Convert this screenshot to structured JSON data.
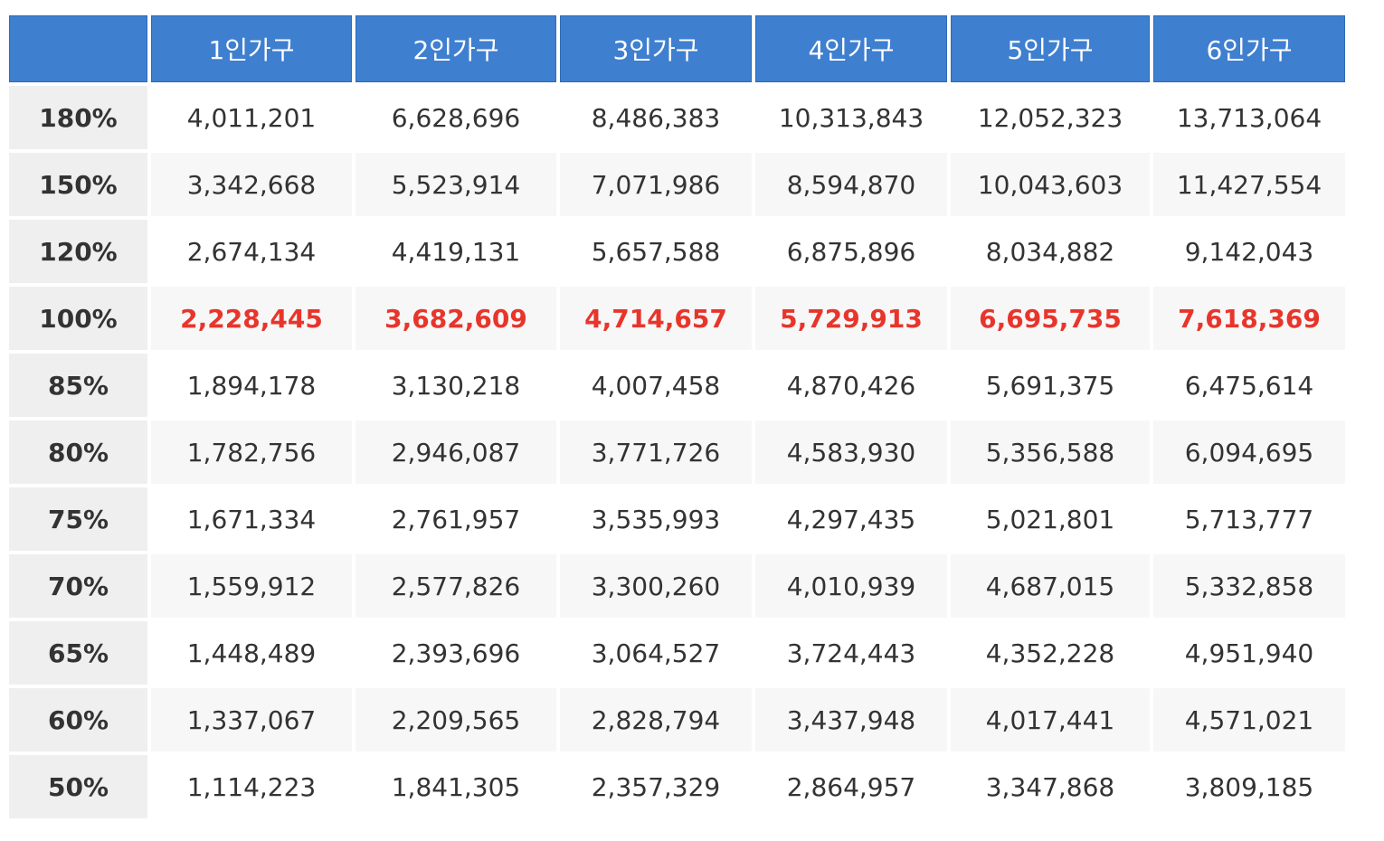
{
  "table": {
    "corner": "",
    "headers": [
      "1인가구",
      "2인가구",
      "3인가구",
      "4인가구",
      "5인가구",
      "6인가구"
    ],
    "highlight_color": "#e8352b",
    "header_color": "#3f7fd0",
    "rows": [
      {
        "label": "180%",
        "values": [
          "4,011,201",
          "6,628,696",
          "8,486,383",
          "10,313,843",
          "12,052,323",
          "13,713,064"
        ]
      },
      {
        "label": "150%",
        "values": [
          "3,342,668",
          "5,523,914",
          "7,071,986",
          "8,594,870",
          "10,043,603",
          "11,427,554"
        ]
      },
      {
        "label": "120%",
        "values": [
          "2,674,134",
          "4,419,131",
          "5,657,588",
          "6,875,896",
          "8,034,882",
          "9,142,043"
        ]
      },
      {
        "label": "100%",
        "highlight": true,
        "values": [
          "2,228,445",
          "3,682,609",
          "4,714,657",
          "5,729,913",
          "6,695,735",
          "7,618,369"
        ]
      },
      {
        "label": "85%",
        "values": [
          "1,894,178",
          "3,130,218",
          "4,007,458",
          "4,870,426",
          "5,691,375",
          "6,475,614"
        ]
      },
      {
        "label": "80%",
        "values": [
          "1,782,756",
          "2,946,087",
          "3,771,726",
          "4,583,930",
          "5,356,588",
          "6,094,695"
        ]
      },
      {
        "label": "75%",
        "values": [
          "1,671,334",
          "2,761,957",
          "3,535,993",
          "4,297,435",
          "5,021,801",
          "5,713,777"
        ]
      },
      {
        "label": "70%",
        "values": [
          "1,559,912",
          "2,577,826",
          "3,300,260",
          "4,010,939",
          "4,687,015",
          "5,332,858"
        ]
      },
      {
        "label": "65%",
        "values": [
          "1,448,489",
          "2,393,696",
          "3,064,527",
          "3,724,443",
          "4,352,228",
          "4,951,940"
        ]
      },
      {
        "label": "60%",
        "values": [
          "1,337,067",
          "2,209,565",
          "2,828,794",
          "3,437,948",
          "4,017,441",
          "4,571,021"
        ]
      },
      {
        "label": "50%",
        "values": [
          "1,114,223",
          "1,841,305",
          "2,357,329",
          "2,864,957",
          "3,347,868",
          "3,809,185"
        ]
      }
    ]
  }
}
